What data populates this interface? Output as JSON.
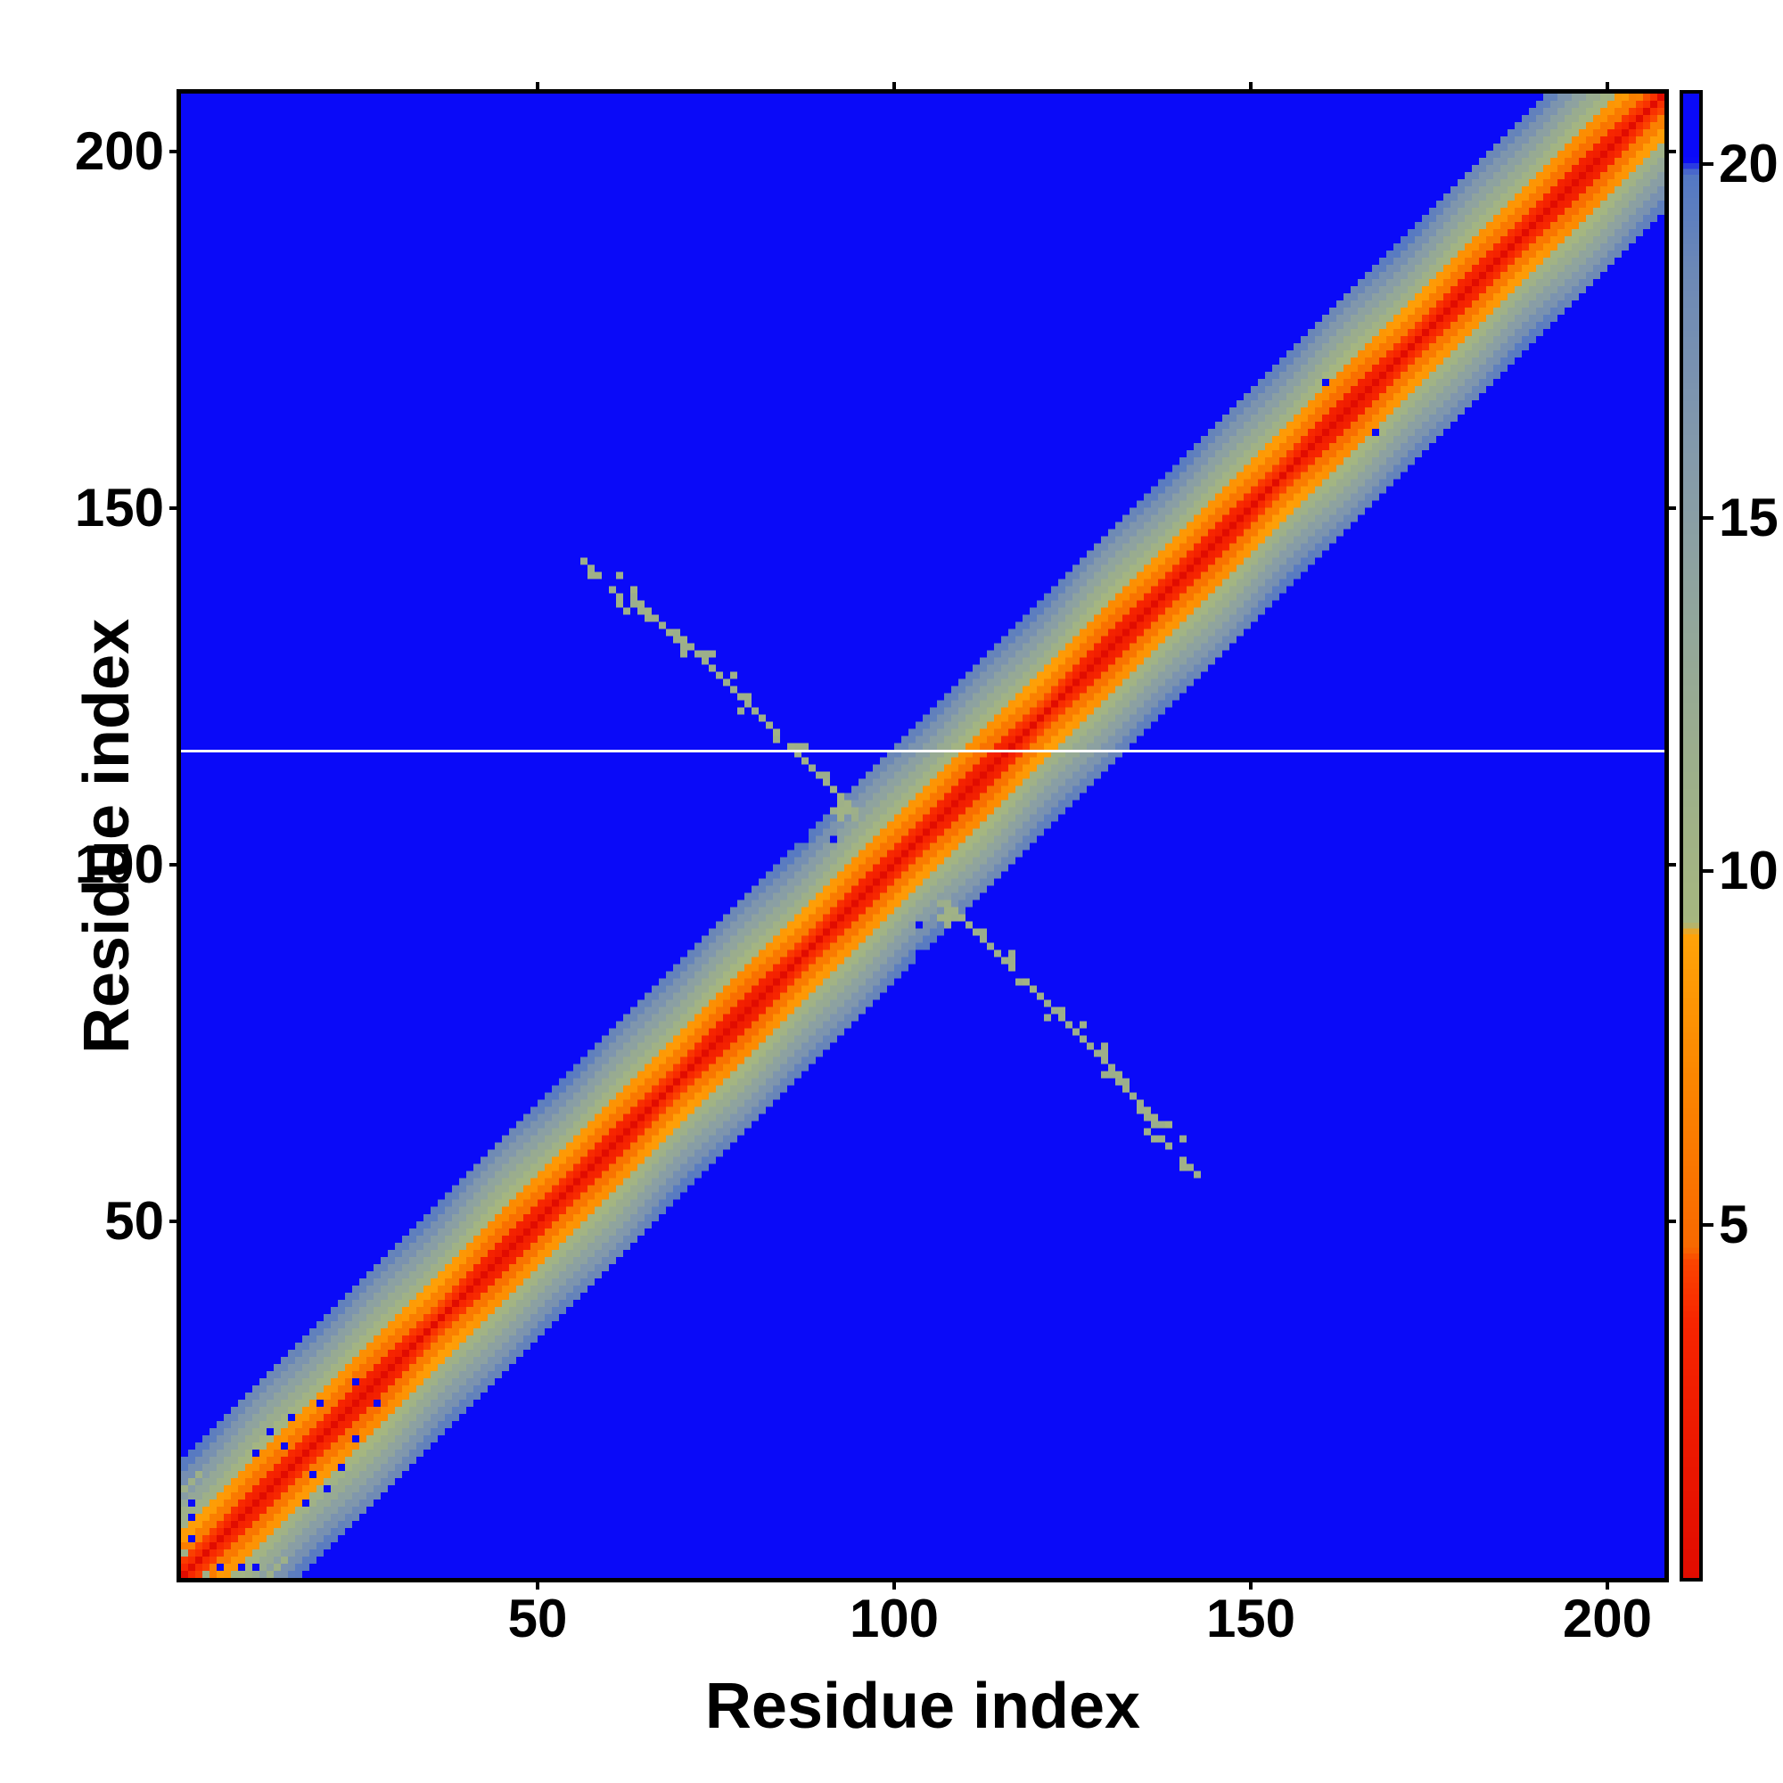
{
  "figure": {
    "background_color": "#ffffff",
    "axis_color": "#000000"
  },
  "chart_data": {
    "type": "heatmap",
    "title": "",
    "xlabel": "Residue index",
    "ylabel": "Residue index",
    "x_ticks": [
      50,
      100,
      150,
      200
    ],
    "y_ticks": [
      50,
      100,
      150,
      200
    ],
    "n_residues": 208,
    "axis_range": [
      0,
      208
    ],
    "grid": false,
    "legend_position": "none",
    "colorbar": {
      "ticks": [
        5,
        10,
        15,
        20
      ],
      "vmin": 0,
      "vmax": 21,
      "orientation": "vertical-right"
    },
    "background_value": 21,
    "colormap_stops": [
      {
        "v": 0.0,
        "color": "#e10c00"
      },
      {
        "v": 3.6,
        "color": "#f72500"
      },
      {
        "v": 4.45,
        "color": "#fb4400"
      },
      {
        "v": 4.65,
        "color": "#f86800"
      },
      {
        "v": 7.0,
        "color": "#fb8500"
      },
      {
        "v": 9.1,
        "color": "#ffa308"
      },
      {
        "v": 9.25,
        "color": "#a6b77f"
      },
      {
        "v": 11.5,
        "color": "#9cae8b"
      },
      {
        "v": 13.5,
        "color": "#92a69b"
      },
      {
        "v": 16.0,
        "color": "#8399ab"
      },
      {
        "v": 18.5,
        "color": "#6c88b6"
      },
      {
        "v": 19.9,
        "color": "#5377c4"
      },
      {
        "v": 20.1,
        "color": "#0a0af8"
      },
      {
        "v": 21.0,
        "color": "#0a0af8"
      }
    ],
    "diagonal_band": {
      "d_first_neighbor": 3.2,
      "slope_per_residue": 1.08,
      "checker_amplitude": 0.55,
      "cap": 21
    },
    "antidiagonal_contacts": {
      "start": [
        57,
        141
      ],
      "end": [
        141,
        57
      ],
      "value": 11.0,
      "seed": 7,
      "min_offdiag": 12,
      "symmetric": true
    },
    "missing_row": 116,
    "missing_row_color": "#fbfbfb",
    "blue_defects": [
      [
        15,
        22
      ],
      [
        12,
        20
      ],
      [
        14,
        18
      ],
      [
        10,
        17
      ],
      [
        22,
        15
      ],
      [
        17,
        10
      ],
      [
        1,
        8
      ],
      [
        1,
        5
      ],
      [
        5,
        1
      ],
      [
        8,
        1
      ],
      [
        10,
        1
      ],
      [
        24,
        27
      ],
      [
        19,
        24
      ],
      [
        87,
        103
      ],
      [
        91,
        103
      ],
      [
        160,
        167
      ]
    ],
    "sage_specks": [
      [
        9,
        0
      ],
      [
        12,
        0
      ],
      [
        0,
        3
      ],
      [
        2,
        14
      ],
      [
        13,
        1
      ]
    ]
  }
}
